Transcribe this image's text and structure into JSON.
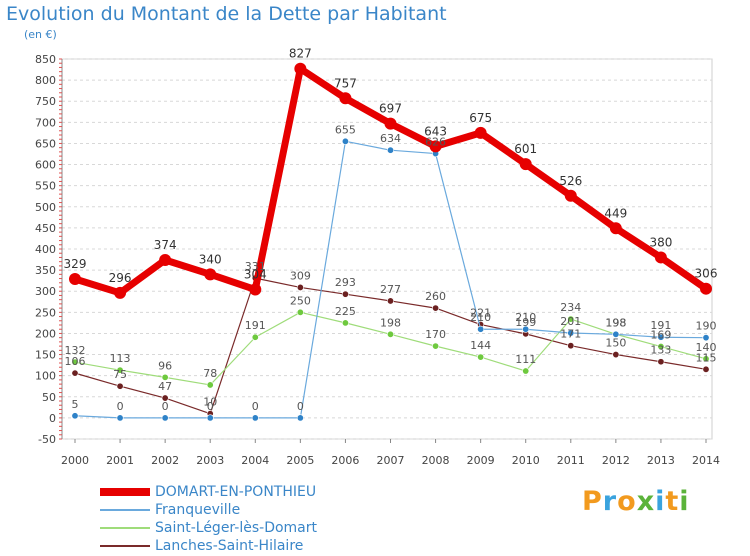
{
  "header": {
    "title": "Evolution du Montant de la Dette par Habitant",
    "unit": "(en €)"
  },
  "brand": {
    "letters": [
      "P",
      "r",
      "o",
      "x",
      "i",
      "t",
      "i"
    ],
    "colors": [
      "#f29a1e",
      "#3aa3de",
      "#f29a1e",
      "#5bb33a",
      "#3aa3de",
      "#f29a1e",
      "#5bb33a"
    ]
  },
  "chart_data": {
    "type": "line",
    "title": "Evolution du Montant de la Dette par Habitant",
    "ylabel": "(en €)",
    "x": [
      "2000",
      "2001",
      "2002",
      "2003",
      "2004",
      "2005",
      "2006",
      "2007",
      "2008",
      "2009",
      "2010",
      "2011",
      "2012",
      "2013",
      "2014"
    ],
    "ylim": [
      -50,
      850
    ],
    "yticks": [
      -50,
      0,
      50,
      100,
      150,
      200,
      250,
      300,
      350,
      400,
      450,
      500,
      550,
      600,
      650,
      700,
      750,
      800,
      850
    ],
    "grid": "dashed-horizontal",
    "legend_position": "bottom-left",
    "series": [
      {
        "name": "DOMART-EN-PONTHIEU",
        "color": "#e60000",
        "point_color": "#e60000",
        "width": 7,
        "values": [
          329,
          296,
          374,
          340,
          304,
          827,
          757,
          697,
          643,
          675,
          601,
          526,
          449,
          380,
          306
        ],
        "labels": [
          "329",
          "296",
          "374",
          "340",
          "304",
          "827",
          "757",
          "697",
          "643",
          "675",
          "601",
          "526",
          "449",
          "380",
          "306"
        ]
      },
      {
        "name": "Franqueville",
        "color": "#6aa9dd",
        "point_color": "#2e82c8",
        "width": 1.2,
        "values": [
          5,
          0,
          0,
          0,
          0,
          0,
          655,
          634,
          626,
          210,
          210,
          201,
          198,
          191,
          190
        ],
        "labels": [
          "5",
          "0",
          "0",
          "0",
          "0",
          "0",
          "655",
          "634",
          "626",
          "210",
          "210",
          "201",
          "198",
          "191",
          "190"
        ]
      },
      {
        "name": "Saint-Léger-lès-Domart",
        "color": "#9fdc7a",
        "point_color": "#6ec93e",
        "width": 1.2,
        "values": [
          132,
          113,
          96,
          78,
          191,
          250,
          225,
          198,
          170,
          144,
          111,
          234,
          198,
          169,
          140
        ],
        "labels": [
          "132",
          "113",
          "96",
          "78",
          "191",
          "250",
          "225",
          "198",
          "170",
          "144",
          "111",
          "234",
          "198",
          "169",
          "140"
        ]
      },
      {
        "name": "Lanches-Saint-Hilaire",
        "color": "#7a2a2a",
        "point_color": "#6b2020",
        "width": 1.2,
        "values": [
          106,
          75,
          47,
          10,
          331,
          309,
          293,
          277,
          260,
          221,
          199,
          171,
          150,
          133,
          115
        ],
        "labels": [
          "106",
          "75",
          "47",
          "10",
          "331",
          "309",
          "293",
          "277",
          "260",
          "221",
          "199",
          "171",
          "150",
          "133",
          "115"
        ]
      }
    ]
  }
}
